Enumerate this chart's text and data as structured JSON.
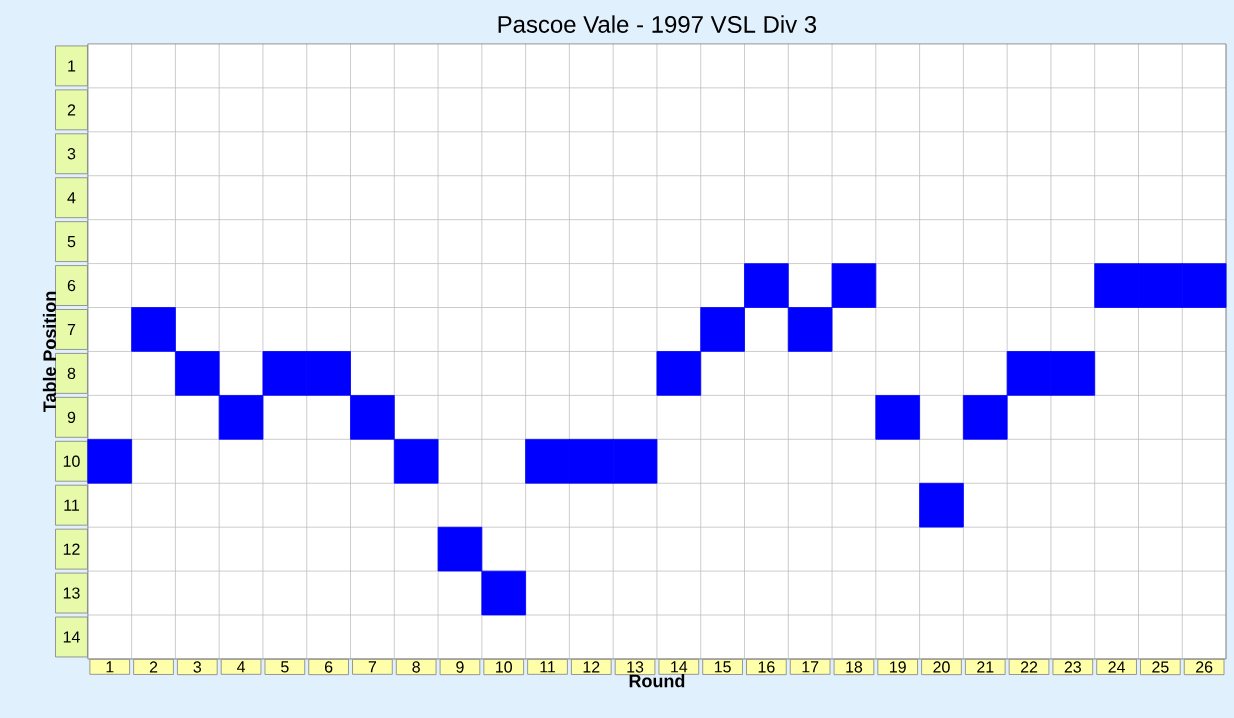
{
  "chart_data": {
    "type": "scatter",
    "title": "Pascoe Vale - 1997 VSL Div 3",
    "xlabel": "Round",
    "ylabel": "Table Position",
    "categories": [
      "1",
      "2",
      "3",
      "4",
      "5",
      "6",
      "7",
      "8",
      "9",
      "10",
      "11",
      "12",
      "13",
      "14",
      "15",
      "16",
      "17",
      "18",
      "19",
      "20",
      "21",
      "22",
      "23",
      "24",
      "25",
      "26"
    ],
    "series": [
      {
        "color": "#0000ff",
        "values": [
          10,
          7,
          8,
          9,
          8,
          8,
          9,
          10,
          12,
          13,
          10,
          10,
          10,
          8,
          7,
          6,
          7,
          6,
          9,
          11,
          9,
          8,
          8,
          6,
          6,
          6
        ]
      }
    ],
    "ylim": [
      14.5,
      0.5
    ],
    "yticks": [
      1,
      2,
      3,
      4,
      5,
      6,
      7,
      8,
      9,
      10,
      11,
      12,
      13,
      14
    ],
    "marker": "square",
    "grid": true
  }
}
